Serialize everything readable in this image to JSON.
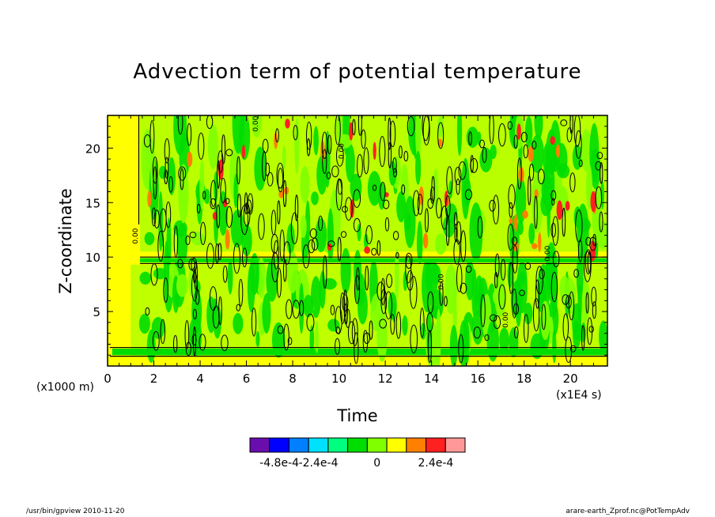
{
  "chart_data": {
    "type": "heatmap",
    "title": "Advection term of potential temperature",
    "xlabel": "Time",
    "ylabel": "Z-coordinate",
    "x_unit": "(x1E4 s)",
    "y_unit": "(x1000 m)",
    "xlim": [
      0,
      21.6
    ],
    "ylim": [
      0,
      23
    ],
    "x_ticks": [
      0,
      2,
      4,
      6,
      8,
      10,
      12,
      14,
      16,
      18,
      20
    ],
    "y_ticks": [
      5,
      10,
      15,
      20
    ],
    "x_tick_labels": [
      "0",
      "2",
      "4",
      "6",
      "8",
      "10",
      "12",
      "14",
      "16",
      "18",
      "20"
    ],
    "y_tick_labels": [
      "5",
      "10",
      "15",
      "20"
    ],
    "contour_label": "0.00",
    "colorbar": {
      "colors": [
        "#6a0dad",
        "#0000ff",
        "#0080ff",
        "#00e0ff",
        "#00ff80",
        "#00dd00",
        "#80ff00",
        "#ffff00",
        "#ff8000",
        "#ff2020",
        "#ff9999"
      ],
      "tick_labels": [
        "-4.8e-4",
        "-2.4e-4",
        "0",
        "2.4e-4"
      ],
      "tick_values": [
        -0.00048,
        -0.00024,
        0,
        0.00024
      ],
      "levels": [
        -0.0006,
        -0.00048,
        -0.00036,
        -0.00024,
        -0.00012,
        -6e-05,
        0,
        6e-05,
        0.00012,
        0.00024,
        0.00036,
        0.00048
      ]
    }
  },
  "footer": {
    "left": "/usr/bin/gpview  2010-11-20",
    "right": "arare-earth_Zprof.nc@PotTempAdv"
  }
}
